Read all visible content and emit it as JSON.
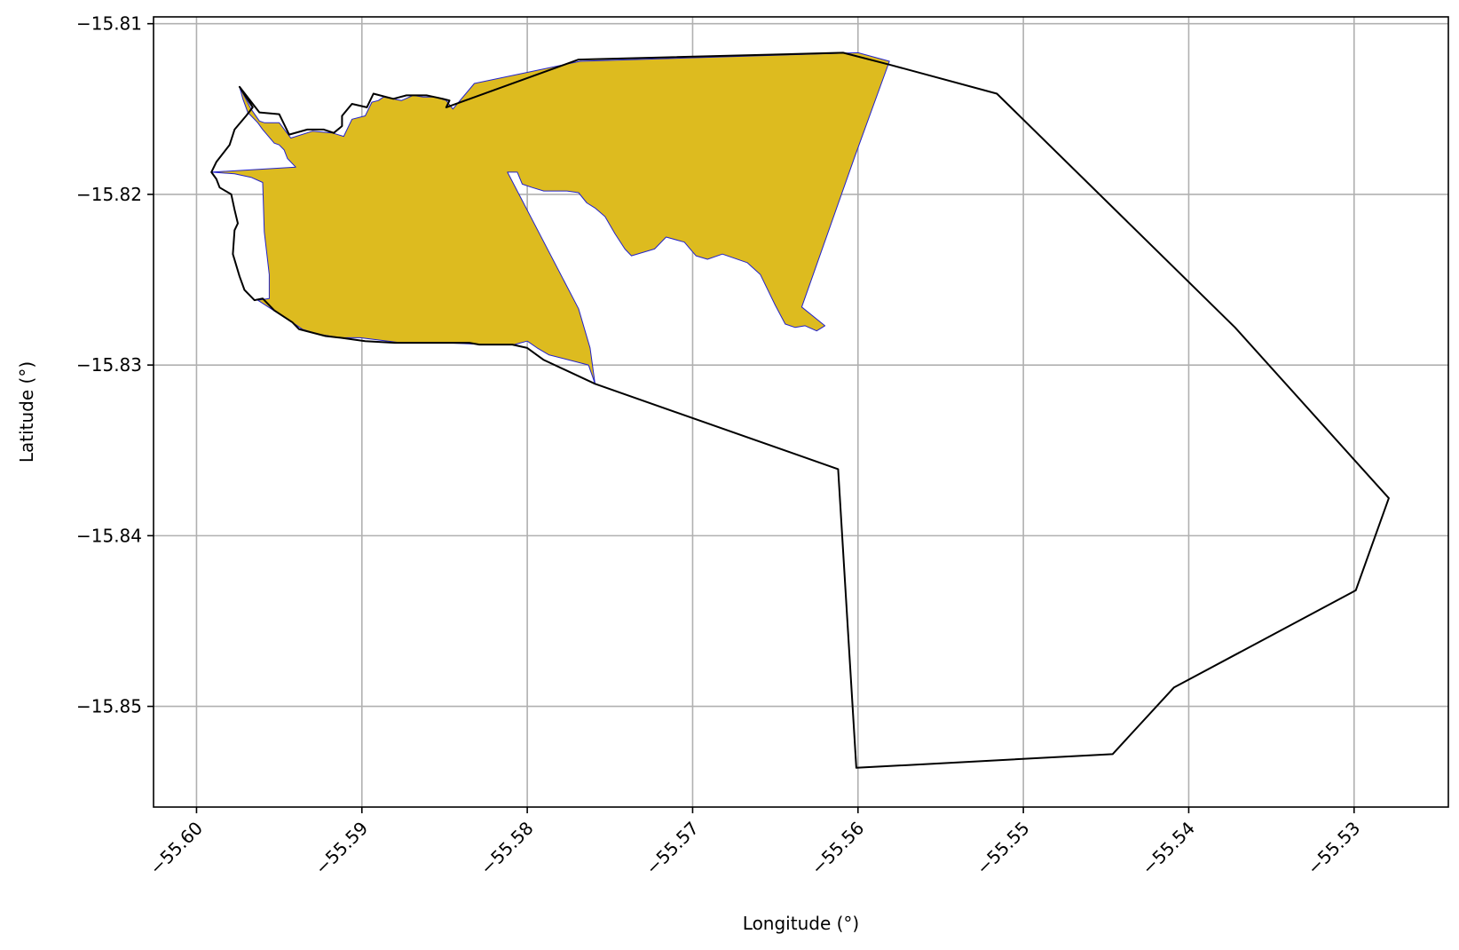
{
  "chart_data": {
    "type": "map",
    "title": "",
    "xlabel": "Longitude (°)",
    "ylabel": "Latitude (°)",
    "xlim": [
      -55.6026,
      -55.5243
    ],
    "ylim": [
      -15.8559,
      -15.8096
    ],
    "grid": true,
    "x_ticks": [
      {
        "value": -55.6,
        "label": "−55.60"
      },
      {
        "value": -55.59,
        "label": "−55.59"
      },
      {
        "value": -55.58,
        "label": "−55.58"
      },
      {
        "value": -55.57,
        "label": "−55.57"
      },
      {
        "value": -55.56,
        "label": "−55.56"
      },
      {
        "value": -55.55,
        "label": "−55.55"
      },
      {
        "value": -55.54,
        "label": "−55.54"
      },
      {
        "value": -55.53,
        "label": "−55.53"
      }
    ],
    "y_ticks": [
      {
        "value": -15.81,
        "label": "−15.81"
      },
      {
        "value": -15.82,
        "label": "−15.82"
      },
      {
        "value": -15.83,
        "label": "−15.83"
      },
      {
        "value": -15.84,
        "label": "−15.84"
      },
      {
        "value": -15.85,
        "label": "−15.85"
      }
    ],
    "layers": [
      {
        "role": "filled-area",
        "fill": "#DDBB1F",
        "stroke": "#2222CC",
        "coordinates": [
          [
            -55.5991,
            -15.8187
          ],
          [
            -55.5977,
            -15.8188
          ],
          [
            -55.5967,
            -15.819
          ],
          [
            -55.596,
            -15.8193
          ],
          [
            -55.5959,
            -15.8222
          ],
          [
            -55.5956,
            -15.8247
          ],
          [
            -55.5956,
            -15.8261
          ],
          [
            -55.5963,
            -15.8262
          ],
          [
            -55.5955,
            -15.8267
          ],
          [
            -55.5947,
            -15.8272
          ],
          [
            -55.5942,
            -15.8275
          ],
          [
            -55.5936,
            -15.8279
          ],
          [
            -55.5926,
            -15.8282
          ],
          [
            -55.5913,
            -15.8284
          ],
          [
            -55.5901,
            -15.8284
          ],
          [
            -55.5876,
            -15.8287
          ],
          [
            -55.585,
            -15.8287
          ],
          [
            -55.5825,
            -15.8288
          ],
          [
            -55.5808,
            -15.8288
          ],
          [
            -55.58,
            -15.8286
          ],
          [
            -55.5794,
            -15.829
          ],
          [
            -55.5787,
            -15.8294
          ],
          [
            -55.5763,
            -15.83
          ],
          [
            -55.5759,
            -15.8311
          ],
          [
            -55.5762,
            -15.829
          ],
          [
            -55.5769,
            -15.8267
          ],
          [
            -55.5812,
            -15.8187
          ],
          [
            -55.5806,
            -15.8187
          ],
          [
            -55.5803,
            -15.8194
          ],
          [
            -55.5797,
            -15.8196
          ],
          [
            -55.579,
            -15.8198
          ],
          [
            -55.5784,
            -15.8198
          ],
          [
            -55.5776,
            -15.8198
          ],
          [
            -55.5769,
            -15.8199
          ],
          [
            -55.5764,
            -15.8205
          ],
          [
            -55.5759,
            -15.8208
          ],
          [
            -55.5753,
            -15.8213
          ],
          [
            -55.5747,
            -15.8223
          ],
          [
            -55.5741,
            -15.8232
          ],
          [
            -55.5737,
            -15.8236
          ],
          [
            -55.5723,
            -15.8232
          ],
          [
            -55.5716,
            -15.8225
          ],
          [
            -55.5705,
            -15.8228
          ],
          [
            -55.5698,
            -15.8236
          ],
          [
            -55.5691,
            -15.8238
          ],
          [
            -55.5682,
            -15.8235
          ],
          [
            -55.5667,
            -15.824
          ],
          [
            -55.5659,
            -15.8247
          ],
          [
            -55.565,
            -15.8265
          ],
          [
            -55.5644,
            -15.8276
          ],
          [
            -55.5638,
            -15.8278
          ],
          [
            -55.5632,
            -15.8277
          ],
          [
            -55.5625,
            -15.828
          ],
          [
            -55.562,
            -15.8277
          ],
          [
            -55.5634,
            -15.8266
          ],
          [
            -55.5602,
            -15.8178
          ],
          [
            -55.5581,
            -15.8122
          ],
          [
            -55.56,
            -15.8117
          ],
          [
            -55.5768,
            -15.8122
          ],
          [
            -55.5832,
            -15.8135
          ],
          [
            -55.5845,
            -15.815
          ],
          [
            -55.5849,
            -15.8145
          ],
          [
            -55.5856,
            -15.8143
          ],
          [
            -55.5863,
            -15.8143
          ],
          [
            -55.5869,
            -15.8142
          ],
          [
            -55.5876,
            -15.8145
          ],
          [
            -55.5887,
            -15.8143
          ],
          [
            -55.589,
            -15.8145
          ],
          [
            -55.5894,
            -15.8146
          ],
          [
            -55.5898,
            -15.8154
          ],
          [
            -55.5906,
            -15.8156
          ],
          [
            -55.5911,
            -15.8166
          ],
          [
            -55.5918,
            -15.8164
          ],
          [
            -55.593,
            -15.8163
          ],
          [
            -55.5943,
            -15.8167
          ],
          [
            -55.595,
            -15.8158
          ],
          [
            -55.5959,
            -15.8158
          ],
          [
            -55.5962,
            -15.8157
          ],
          [
            -55.5967,
            -15.815
          ],
          [
            -55.5974,
            -15.8137
          ],
          [
            -55.5972,
            -15.8144
          ],
          [
            -55.5969,
            -15.8152
          ],
          [
            -55.5963,
            -15.8158
          ],
          [
            -55.596,
            -15.8162
          ],
          [
            -55.5953,
            -15.817
          ],
          [
            -55.595,
            -15.8171
          ],
          [
            -55.5947,
            -15.8174
          ],
          [
            -55.5945,
            -15.8179
          ],
          [
            -55.594,
            -15.8184
          ],
          [
            -55.5991,
            -15.8187
          ]
        ]
      },
      {
        "role": "outline",
        "fill": "none",
        "stroke": "#000000",
        "coordinates": [
          [
            -55.5991,
            -15.8187
          ],
          [
            -55.5988,
            -15.8181
          ],
          [
            -55.598,
            -15.8171
          ],
          [
            -55.5977,
            -15.8162
          ],
          [
            -55.597,
            -15.8154
          ],
          [
            -55.5966,
            -15.8149
          ],
          [
            -55.5974,
            -15.8137
          ],
          [
            -55.5962,
            -15.8152
          ],
          [
            -55.595,
            -15.8153
          ],
          [
            -55.5944,
            -15.8165
          ],
          [
            -55.5933,
            -15.8162
          ],
          [
            -55.5923,
            -15.8162
          ],
          [
            -55.5917,
            -15.8164
          ],
          [
            -55.5912,
            -15.816
          ],
          [
            -55.5912,
            -15.8154
          ],
          [
            -55.5906,
            -15.8147
          ],
          [
            -55.5897,
            -15.8149
          ],
          [
            -55.5893,
            -15.8141
          ],
          [
            -55.5881,
            -15.8144
          ],
          [
            -55.5873,
            -15.8142
          ],
          [
            -55.5865,
            -15.8142
          ],
          [
            -55.5861,
            -15.8142
          ],
          [
            -55.5856,
            -15.8143
          ],
          [
            -55.5851,
            -15.8144
          ],
          [
            -55.5847,
            -15.8145
          ],
          [
            -55.5849,
            -15.8149
          ],
          [
            -55.5769,
            -15.8121
          ],
          [
            -55.5609,
            -15.8117
          ],
          [
            -55.5581,
            -15.8124
          ],
          [
            -55.5516,
            -15.8141
          ],
          [
            -55.5372,
            -15.8278
          ],
          [
            -55.5279,
            -15.8378
          ],
          [
            -55.5299,
            -15.8432
          ],
          [
            -55.5409,
            -15.8489
          ],
          [
            -55.5446,
            -15.8528
          ],
          [
            -55.5601,
            -15.8536
          ],
          [
            -55.5612,
            -15.8361
          ],
          [
            -55.5759,
            -15.8311
          ],
          [
            -55.579,
            -15.8297
          ],
          [
            -55.58,
            -15.829
          ],
          [
            -55.5809,
            -15.8288
          ],
          [
            -55.5829,
            -15.8288
          ],
          [
            -55.5835,
            -15.8287
          ],
          [
            -55.5846,
            -15.8287
          ],
          [
            -55.588,
            -15.8287
          ],
          [
            -55.5898,
            -15.8286
          ],
          [
            -55.5913,
            -15.8284
          ],
          [
            -55.5922,
            -15.8283
          ],
          [
            -55.5938,
            -15.8279
          ],
          [
            -55.5942,
            -15.8275
          ],
          [
            -55.5953,
            -15.8268
          ],
          [
            -55.596,
            -15.8261
          ],
          [
            -55.5965,
            -15.8262
          ],
          [
            -55.5971,
            -15.8256
          ],
          [
            -55.5974,
            -15.8248
          ],
          [
            -55.5978,
            -15.8235
          ],
          [
            -55.5977,
            -15.8221
          ],
          [
            -55.5975,
            -15.8217
          ],
          [
            -55.5977,
            -15.8209
          ],
          [
            -55.5979,
            -15.82
          ],
          [
            -55.5986,
            -15.8196
          ],
          [
            -55.5988,
            -15.8191
          ],
          [
            -55.5991,
            -15.8187
          ]
        ]
      }
    ]
  }
}
